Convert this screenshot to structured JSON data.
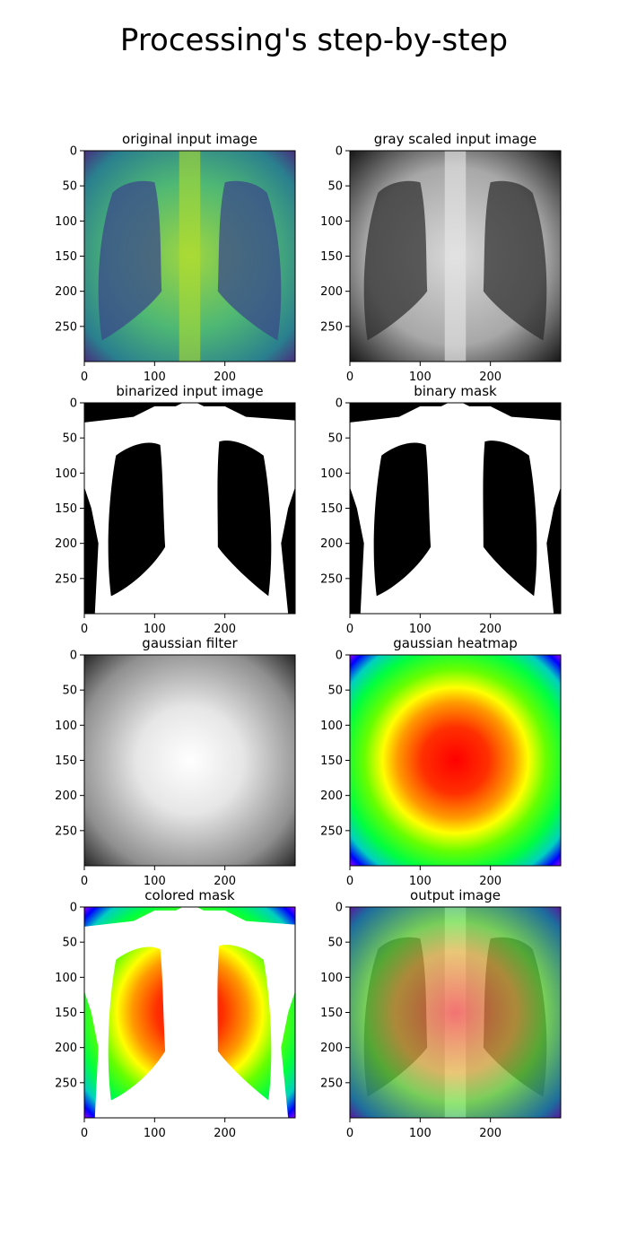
{
  "figure": {
    "title": "Processing's step-by-step"
  },
  "chart_data": {
    "type": "image-grid",
    "rows": 4,
    "cols": 2,
    "image_shape": [
      300,
      300
    ],
    "panels": [
      {
        "title": "original input image",
        "content": "chest x-ray",
        "colormap": "viridis"
      },
      {
        "title": "gray scaled input image",
        "content": "chest x-ray",
        "colormap": "gray"
      },
      {
        "title": "binarized input image",
        "content": "thresholded x-ray",
        "colormap": "binary"
      },
      {
        "title": "binary mask",
        "content": "cleaned lung mask",
        "colormap": "binary"
      },
      {
        "title": "gaussian filter",
        "content": "2d gaussian",
        "colormap": "gray"
      },
      {
        "title": "gaussian heatmap",
        "content": "2d gaussian",
        "colormap": "hsv"
      },
      {
        "title": "colored mask",
        "content": "gaussian heatmap inside mask",
        "colormap": "hsv"
      },
      {
        "title": "output image",
        "content": "x-ray with heatmap overlay",
        "colormap": "gray+hsv"
      }
    ],
    "x_ticks": [
      0,
      100,
      200
    ],
    "y_ticks": [
      0,
      50,
      100,
      150,
      200,
      250
    ],
    "xlim": [
      0,
      300
    ],
    "ylim": [
      300,
      0
    ]
  }
}
